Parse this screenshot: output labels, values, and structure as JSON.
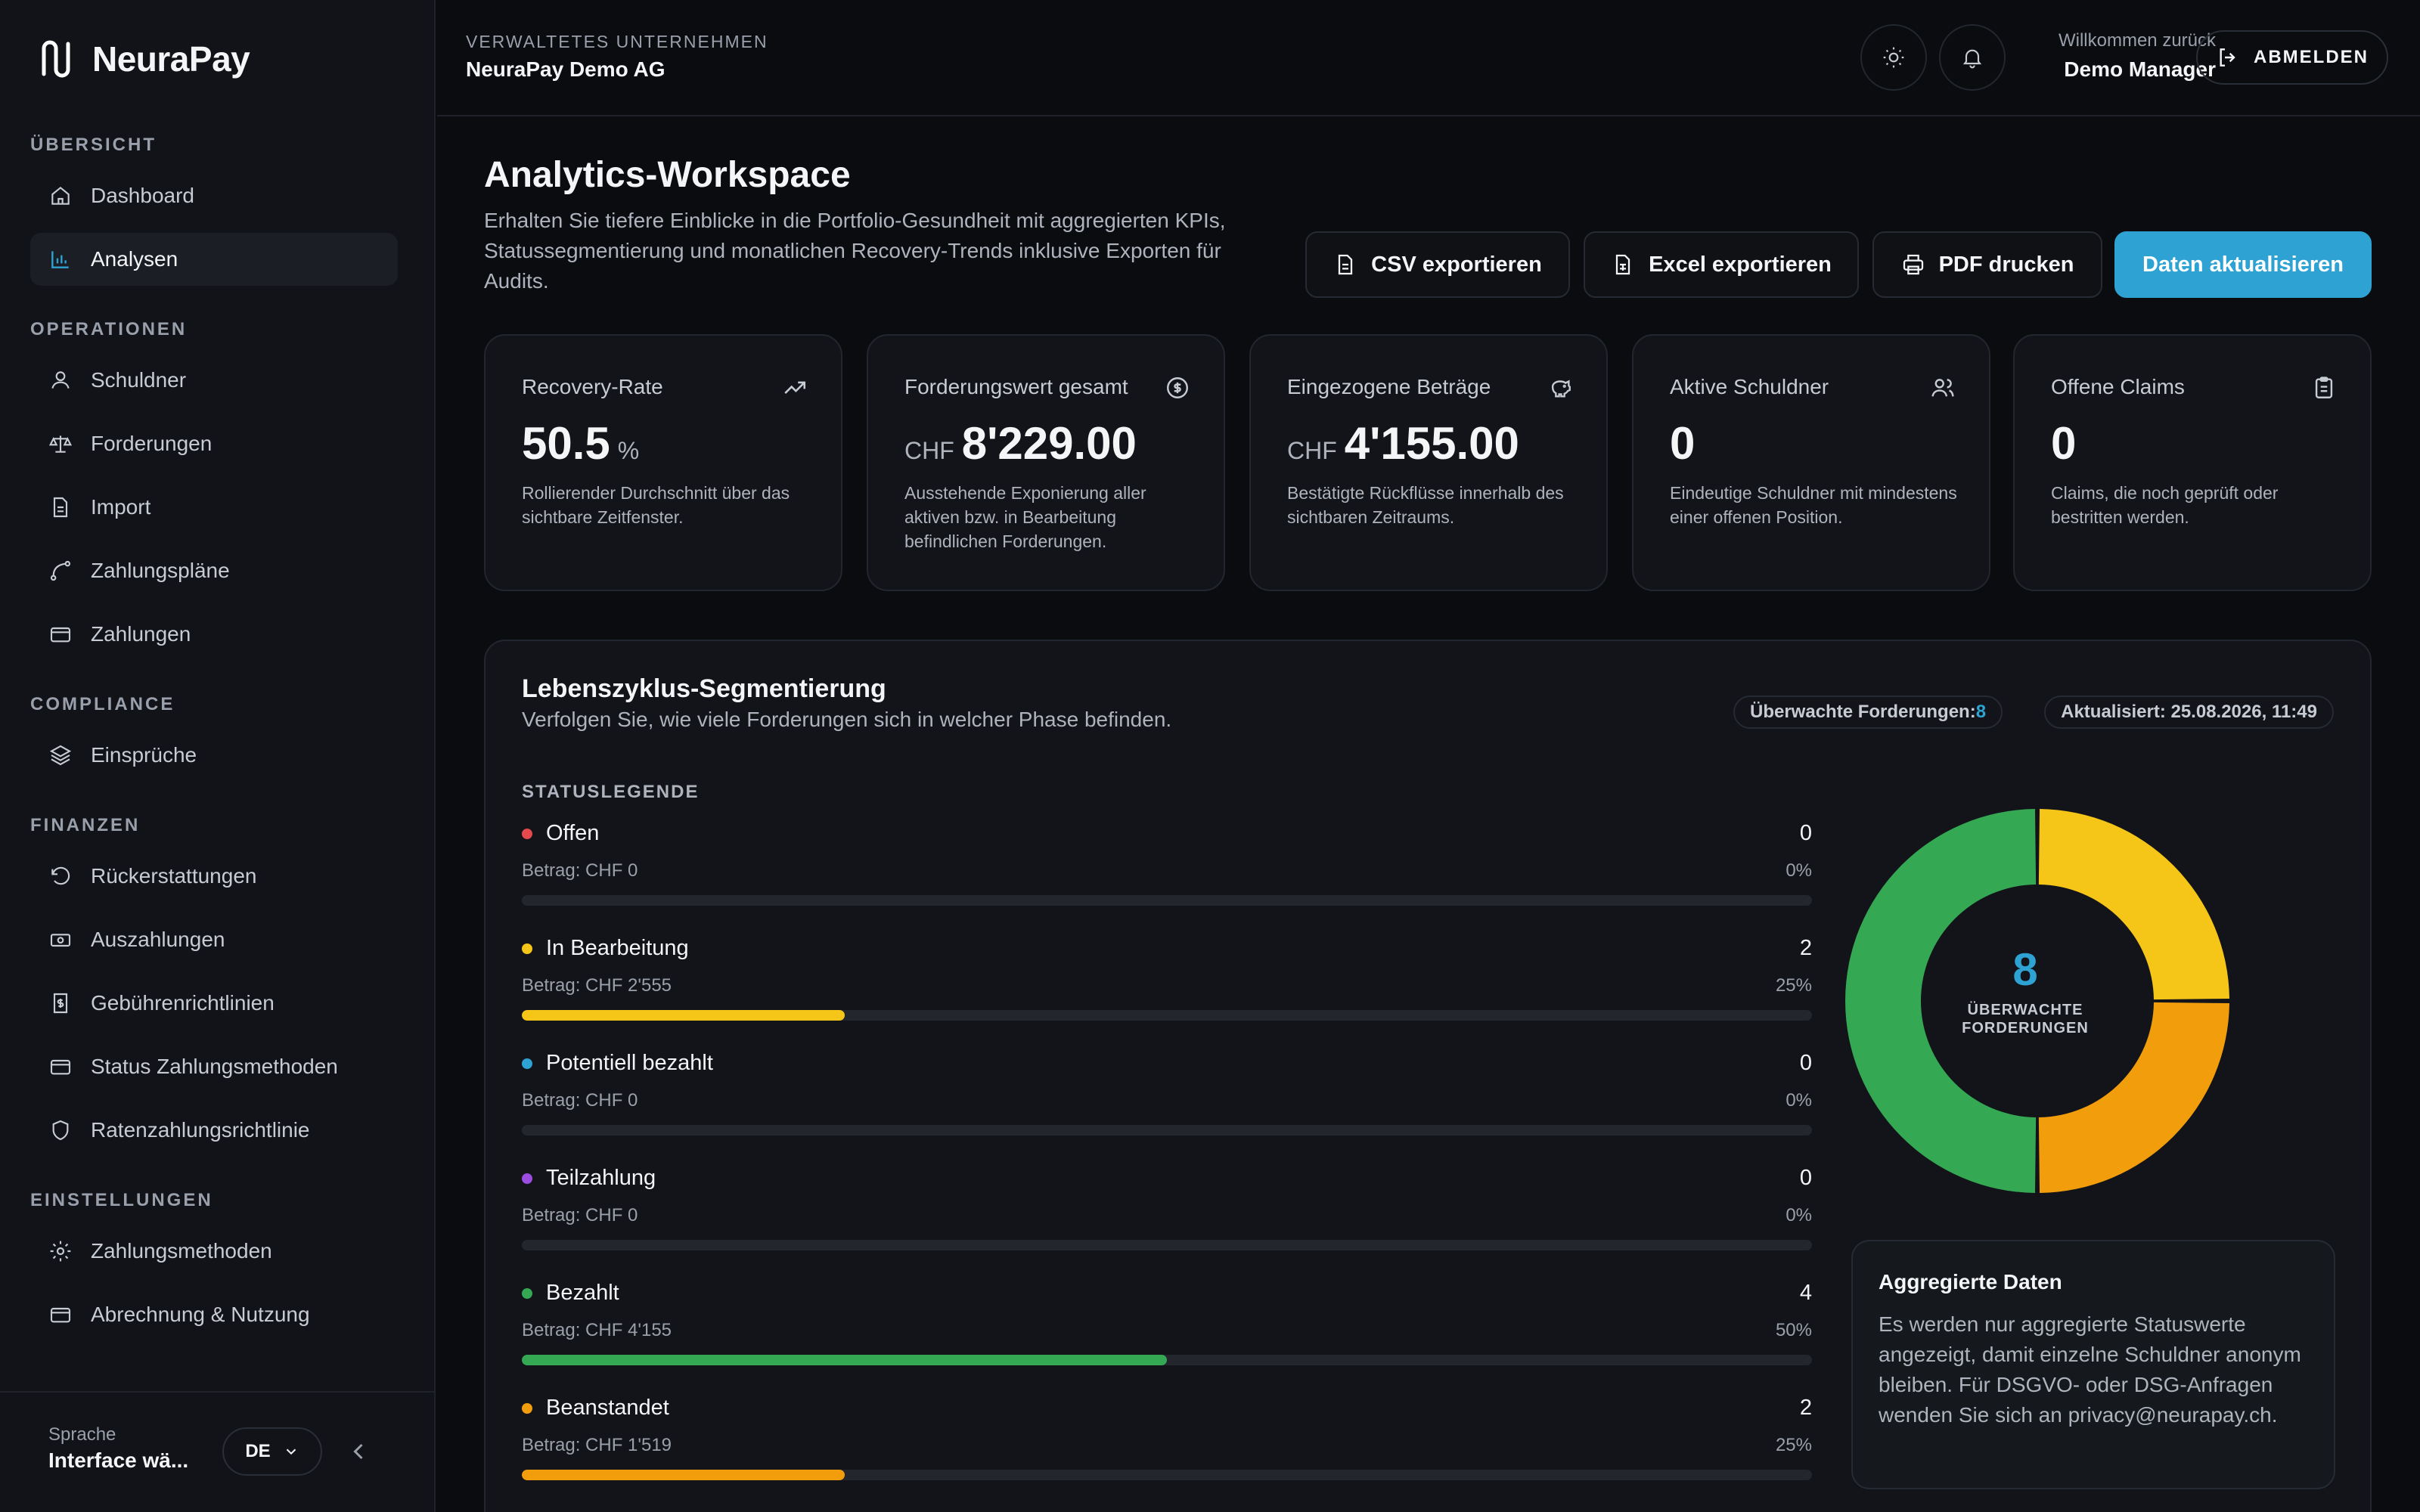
{
  "brand": {
    "name": "NeuraPay"
  },
  "sidebar": {
    "sections": [
      {
        "label": "ÜBERSICHT",
        "items": [
          {
            "label": "Dashboard",
            "icon": "home-icon"
          },
          {
            "label": "Analysen",
            "icon": "bar-chart-icon",
            "active": true
          }
        ]
      },
      {
        "label": "OPERATIONEN",
        "items": [
          {
            "label": "Schuldner",
            "icon": "user-icon"
          },
          {
            "label": "Forderungen",
            "icon": "scale-icon"
          },
          {
            "label": "Import",
            "icon": "file-icon"
          },
          {
            "label": "Zahlungspläne",
            "icon": "route-icon"
          },
          {
            "label": "Zahlungen",
            "icon": "card-icon"
          }
        ]
      },
      {
        "label": "COMPLIANCE",
        "items": [
          {
            "label": "Einsprüche",
            "icon": "layers-icon"
          }
        ]
      },
      {
        "label": "FINANZEN",
        "items": [
          {
            "label": "Rückerstattungen",
            "icon": "undo-icon"
          },
          {
            "label": "Auszahlungen",
            "icon": "banknote-icon"
          },
          {
            "label": "Gebührenrichtlinien",
            "icon": "receipt-icon"
          },
          {
            "label": "Status Zahlungsmethoden",
            "icon": "card-icon"
          },
          {
            "label": "Ratenzahlungsrichtlinie",
            "icon": "shield-icon"
          }
        ]
      },
      {
        "label": "EINSTELLUNGEN",
        "items": [
          {
            "label": "Zahlungsmethoden",
            "icon": "gear-icon"
          },
          {
            "label": "Abrechnung & Nutzung",
            "icon": "card-icon"
          }
        ]
      }
    ],
    "footer": {
      "language_label": "Sprache",
      "language_value": "Interface wä...",
      "language_code": "DE"
    }
  },
  "header": {
    "tenant_label": "VERWALTETES UNTERNEHMEN",
    "tenant_name": "NeuraPay Demo AG",
    "welcome_label": "Willkommen zurück",
    "user_name": "Demo Manager",
    "logout_label": "ABMELDEN"
  },
  "page": {
    "title": "Analytics-Workspace",
    "description": "Erhalten Sie tiefere Einblicke in die Portfolio-Gesundheit mit aggregierten KPIs, Statussegmentierung und monatlichen Recovery-Trends inklusive Exporten für Audits.",
    "actions": {
      "csv": "CSV exportieren",
      "excel": "Excel exportieren",
      "pdf": "PDF drucken",
      "refresh": "Daten aktualisieren"
    }
  },
  "kpis": [
    {
      "title": "Recovery-Rate",
      "prefix": "",
      "value": "50.5",
      "suffix": "%",
      "desc": "Rollierender Durchschnitt über das sichtbare Zeitfenster.",
      "icon": "trending-up-icon"
    },
    {
      "title": "Forderungswert gesamt",
      "prefix": "CHF",
      "value": "8'229.00",
      "suffix": "",
      "desc": "Ausstehende Exponierung aller aktiven bzw. in Bearbeitung befindlichen Forderungen.",
      "icon": "dollar-circle-icon"
    },
    {
      "title": "Eingezogene Beträge",
      "prefix": "CHF",
      "value": "4'155.00",
      "suffix": "",
      "desc": "Bestätigte Rückflüsse innerhalb des sichtbaren Zeitraums.",
      "icon": "piggy-bank-icon"
    },
    {
      "title": "Aktive Schuldner",
      "prefix": "",
      "value": "0",
      "suffix": "",
      "desc": "Eindeutige Schuldner mit mindestens einer offenen Position.",
      "icon": "users-icon"
    },
    {
      "title": "Offene Claims",
      "prefix": "",
      "value": "0",
      "suffix": "",
      "desc": "Claims, die noch geprüft oder bestritten werden.",
      "icon": "clipboard-icon"
    }
  ],
  "segmentation": {
    "title": "Lebenszyklus-Segmentierung",
    "subtitle": "Verfolgen Sie, wie viele Forderungen sich in welcher Phase befinden.",
    "monitored_label": "Überwachte Forderungen:",
    "monitored_value": "8",
    "updated": "Aktualisiert: 25.08.2026, 11:49",
    "legend_title": "STATUSLEGENDE",
    "statuses": [
      {
        "name": "Offen",
        "count": "0",
        "amount": "Betrag: CHF 0",
        "pct": "0%",
        "fraction": 0,
        "color": "#e5484d"
      },
      {
        "name": "In Bearbeitung",
        "count": "2",
        "amount": "Betrag: CHF 2'555",
        "pct": "25%",
        "fraction": 0.25,
        "color": "#f5c518"
      },
      {
        "name": "Potentiell bezahlt",
        "count": "0",
        "amount": "Betrag: CHF 0",
        "pct": "0%",
        "fraction": 0,
        "color": "#2ea3d3"
      },
      {
        "name": "Teilzahlung",
        "count": "0",
        "amount": "Betrag: CHF 0",
        "pct": "0%",
        "fraction": 0,
        "color": "#9b4de0"
      },
      {
        "name": "Bezahlt",
        "count": "4",
        "amount": "Betrag: CHF 4'155",
        "pct": "50%",
        "fraction": 0.5,
        "color": "#34a853"
      },
      {
        "name": "Beanstandet",
        "count": "2",
        "amount": "Betrag: CHF 1'519",
        "pct": "25%",
        "fraction": 0.25,
        "color": "#f29d0b"
      }
    ],
    "donut_center_value": "8",
    "donut_center_label": "ÜBERWACHTE FORDERUNGEN",
    "info_title": "Aggregierte Daten",
    "info_text": "Es werden nur aggregierte Statuswerte angezeigt, damit einzelne Schuldner anonym bleiben. Für DSGVO- oder DSG-Anfragen wenden Sie sich an privacy@neurapay.ch."
  },
  "chart_data": {
    "type": "pie",
    "categories": [
      "In Bearbeitung",
      "Beanstandet",
      "Bezahlt"
    ],
    "values": [
      2,
      2,
      4
    ],
    "colors": [
      "#f5c518",
      "#f29d0b",
      "#34a853"
    ],
    "title": ""
  }
}
